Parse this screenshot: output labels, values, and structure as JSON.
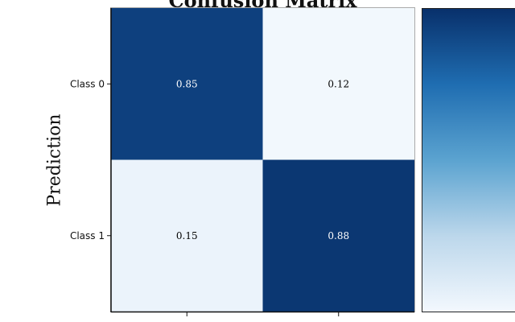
{
  "chart_data": {
    "type": "heatmap",
    "title": "Confusion Matrix",
    "ylabel": "Prediction",
    "xlabel": "",
    "y_categories": [
      "Class 0",
      "Class 1"
    ],
    "x_categories": [
      "",
      ""
    ],
    "values": [
      [
        0.85,
        0.12
      ],
      [
        0.15,
        0.88
      ]
    ],
    "colormap": "Blues",
    "colorbar": true,
    "grid": false
  }
}
